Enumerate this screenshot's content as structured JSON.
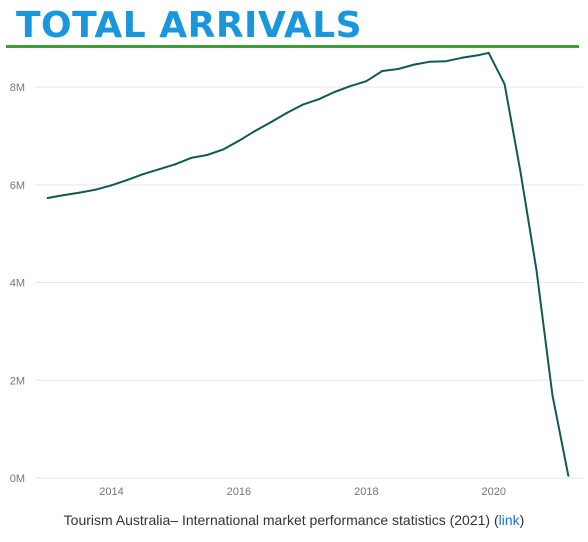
{
  "header": {
    "title": "TOTAL ARRIVALS"
  },
  "colors": {
    "title": "#1a96dc",
    "rule": "#3f9e35",
    "line": "#0f5a55",
    "link": "#1a73e8"
  },
  "source": {
    "prefix": "Tourism Australia– International market performance statistics (2021) (",
    "link_label": "link",
    "suffix": ")"
  },
  "chart_data": {
    "type": "line",
    "title": "TOTAL ARRIVALS",
    "xlabel": "",
    "ylabel": "",
    "grid": true,
    "legend": "none",
    "xlim": [
      2012.8,
      2021.4
    ],
    "ylim": [
      0,
      8800000
    ],
    "x_ticks": [
      2014,
      2016,
      2018,
      2020
    ],
    "x_tick_labels": [
      "2014",
      "2016",
      "2018",
      "2020"
    ],
    "y_ticks": [
      0,
      2000000,
      4000000,
      6000000,
      8000000
    ],
    "y_tick_labels": [
      "0M",
      "2M",
      "4M",
      "6M",
      "8M"
    ],
    "series": [
      {
        "x": [
          2013.0,
          2013.25,
          2013.5,
          2013.75,
          2014.0,
          2014.25,
          2014.5,
          2014.75,
          2015.0,
          2015.25,
          2015.5,
          2015.75,
          2016.0,
          2016.25,
          2016.5,
          2016.75,
          2017.0,
          2017.25,
          2017.5,
          2017.75,
          2018.0,
          2018.25,
          2018.5,
          2018.75,
          2019.0,
          2019.25,
          2019.5,
          2019.75,
          2019.92,
          2020.17,
          2020.42,
          2020.67,
          2020.92,
          2021.17
        ],
        "y": [
          5730000,
          5790000,
          5840000,
          5900000,
          5990000,
          6100000,
          6220000,
          6320000,
          6420000,
          6550000,
          6610000,
          6720000,
          6900000,
          7100000,
          7280000,
          7470000,
          7640000,
          7750000,
          7900000,
          8020000,
          8120000,
          8330000,
          8370000,
          8460000,
          8520000,
          8530000,
          8600000,
          8650000,
          8700000,
          8060000,
          6250000,
          4250000,
          1700000,
          50000
        ]
      }
    ]
  }
}
